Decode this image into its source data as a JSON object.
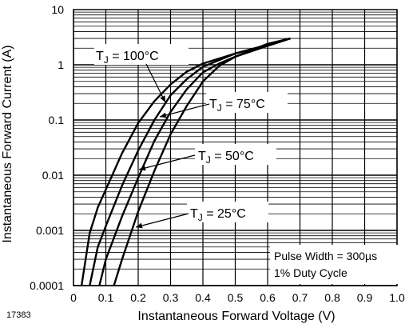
{
  "chart_data": {
    "type": "line",
    "xlabel": "Instantaneous Forward Voltage (V)",
    "ylabel": "Instantaneous Forward Current (A)",
    "x_scale": "linear",
    "y_scale": "log",
    "xlim": [
      0,
      1.0
    ],
    "ylim": [
      0.0001,
      10
    ],
    "x_ticks": [
      0,
      0.1,
      0.2,
      0.3,
      0.4,
      0.5,
      0.6,
      0.7,
      0.8,
      0.9,
      1.0
    ],
    "x_tick_labels": [
      "0",
      "0.1",
      "0.2",
      "0.3",
      "0.4",
      "0.5",
      "0.6",
      "0.7",
      "0.8",
      "0.9",
      "1.0"
    ],
    "y_ticks": [
      10,
      1,
      0.1,
      0.01,
      0.001,
      0.0001
    ],
    "y_tick_labels": [
      "10",
      "1",
      "0.1",
      "0.01",
      "0.001",
      "0.0001"
    ],
    "grid": true,
    "series": [
      {
        "name": "TJ = 100°C",
        "label_prefix": "T",
        "label_sub": "J",
        "label_suffix": " = 100°C",
        "x": [
          0.025,
          0.05,
          0.075,
          0.1,
          0.15,
          0.2,
          0.25,
          0.3,
          0.35,
          0.4,
          0.5,
          0.6,
          0.67
        ],
        "y": [
          0.0001,
          0.0009,
          0.0026,
          0.0055,
          0.025,
          0.088,
          0.22,
          0.44,
          0.75,
          1.05,
          1.6,
          2.3,
          3.0
        ]
      },
      {
        "name": "TJ = 75°C",
        "label_prefix": "T",
        "label_sub": "J",
        "label_suffix": " = 75°C",
        "x": [
          0.05,
          0.075,
          0.1,
          0.15,
          0.2,
          0.25,
          0.3,
          0.35,
          0.4,
          0.5,
          0.6,
          0.67
        ],
        "y": [
          0.0001,
          0.0005,
          0.0012,
          0.0065,
          0.028,
          0.1,
          0.28,
          0.55,
          0.92,
          1.6,
          2.3,
          3.0
        ]
      },
      {
        "name": "TJ = 50°C",
        "label_prefix": "T",
        "label_sub": "J",
        "label_suffix": " = 50°C",
        "x": [
          0.08,
          0.1,
          0.15,
          0.2,
          0.25,
          0.3,
          0.35,
          0.4,
          0.45,
          0.5,
          0.6,
          0.67
        ],
        "y": [
          0.0001,
          0.0003,
          0.0018,
          0.009,
          0.042,
          0.14,
          0.36,
          0.73,
          1.05,
          1.4,
          2.2,
          3.0
        ]
      },
      {
        "name": "TJ = 25°C",
        "label_prefix": "T",
        "label_sub": "J",
        "label_suffix": " = 25°C",
        "x": [
          0.125,
          0.15,
          0.2,
          0.25,
          0.3,
          0.35,
          0.4,
          0.45,
          0.5,
          0.55,
          0.6,
          0.67
        ],
        "y": [
          0.0001,
          0.0003,
          0.0022,
          0.012,
          0.055,
          0.18,
          0.5,
          0.95,
          1.4,
          1.85,
          2.4,
          3.0
        ]
      }
    ],
    "annotations": {
      "pulse_width": "Pulse Width = 300µs",
      "duty_cycle": "1% Duty Cycle"
    },
    "figure_id": "17383"
  }
}
